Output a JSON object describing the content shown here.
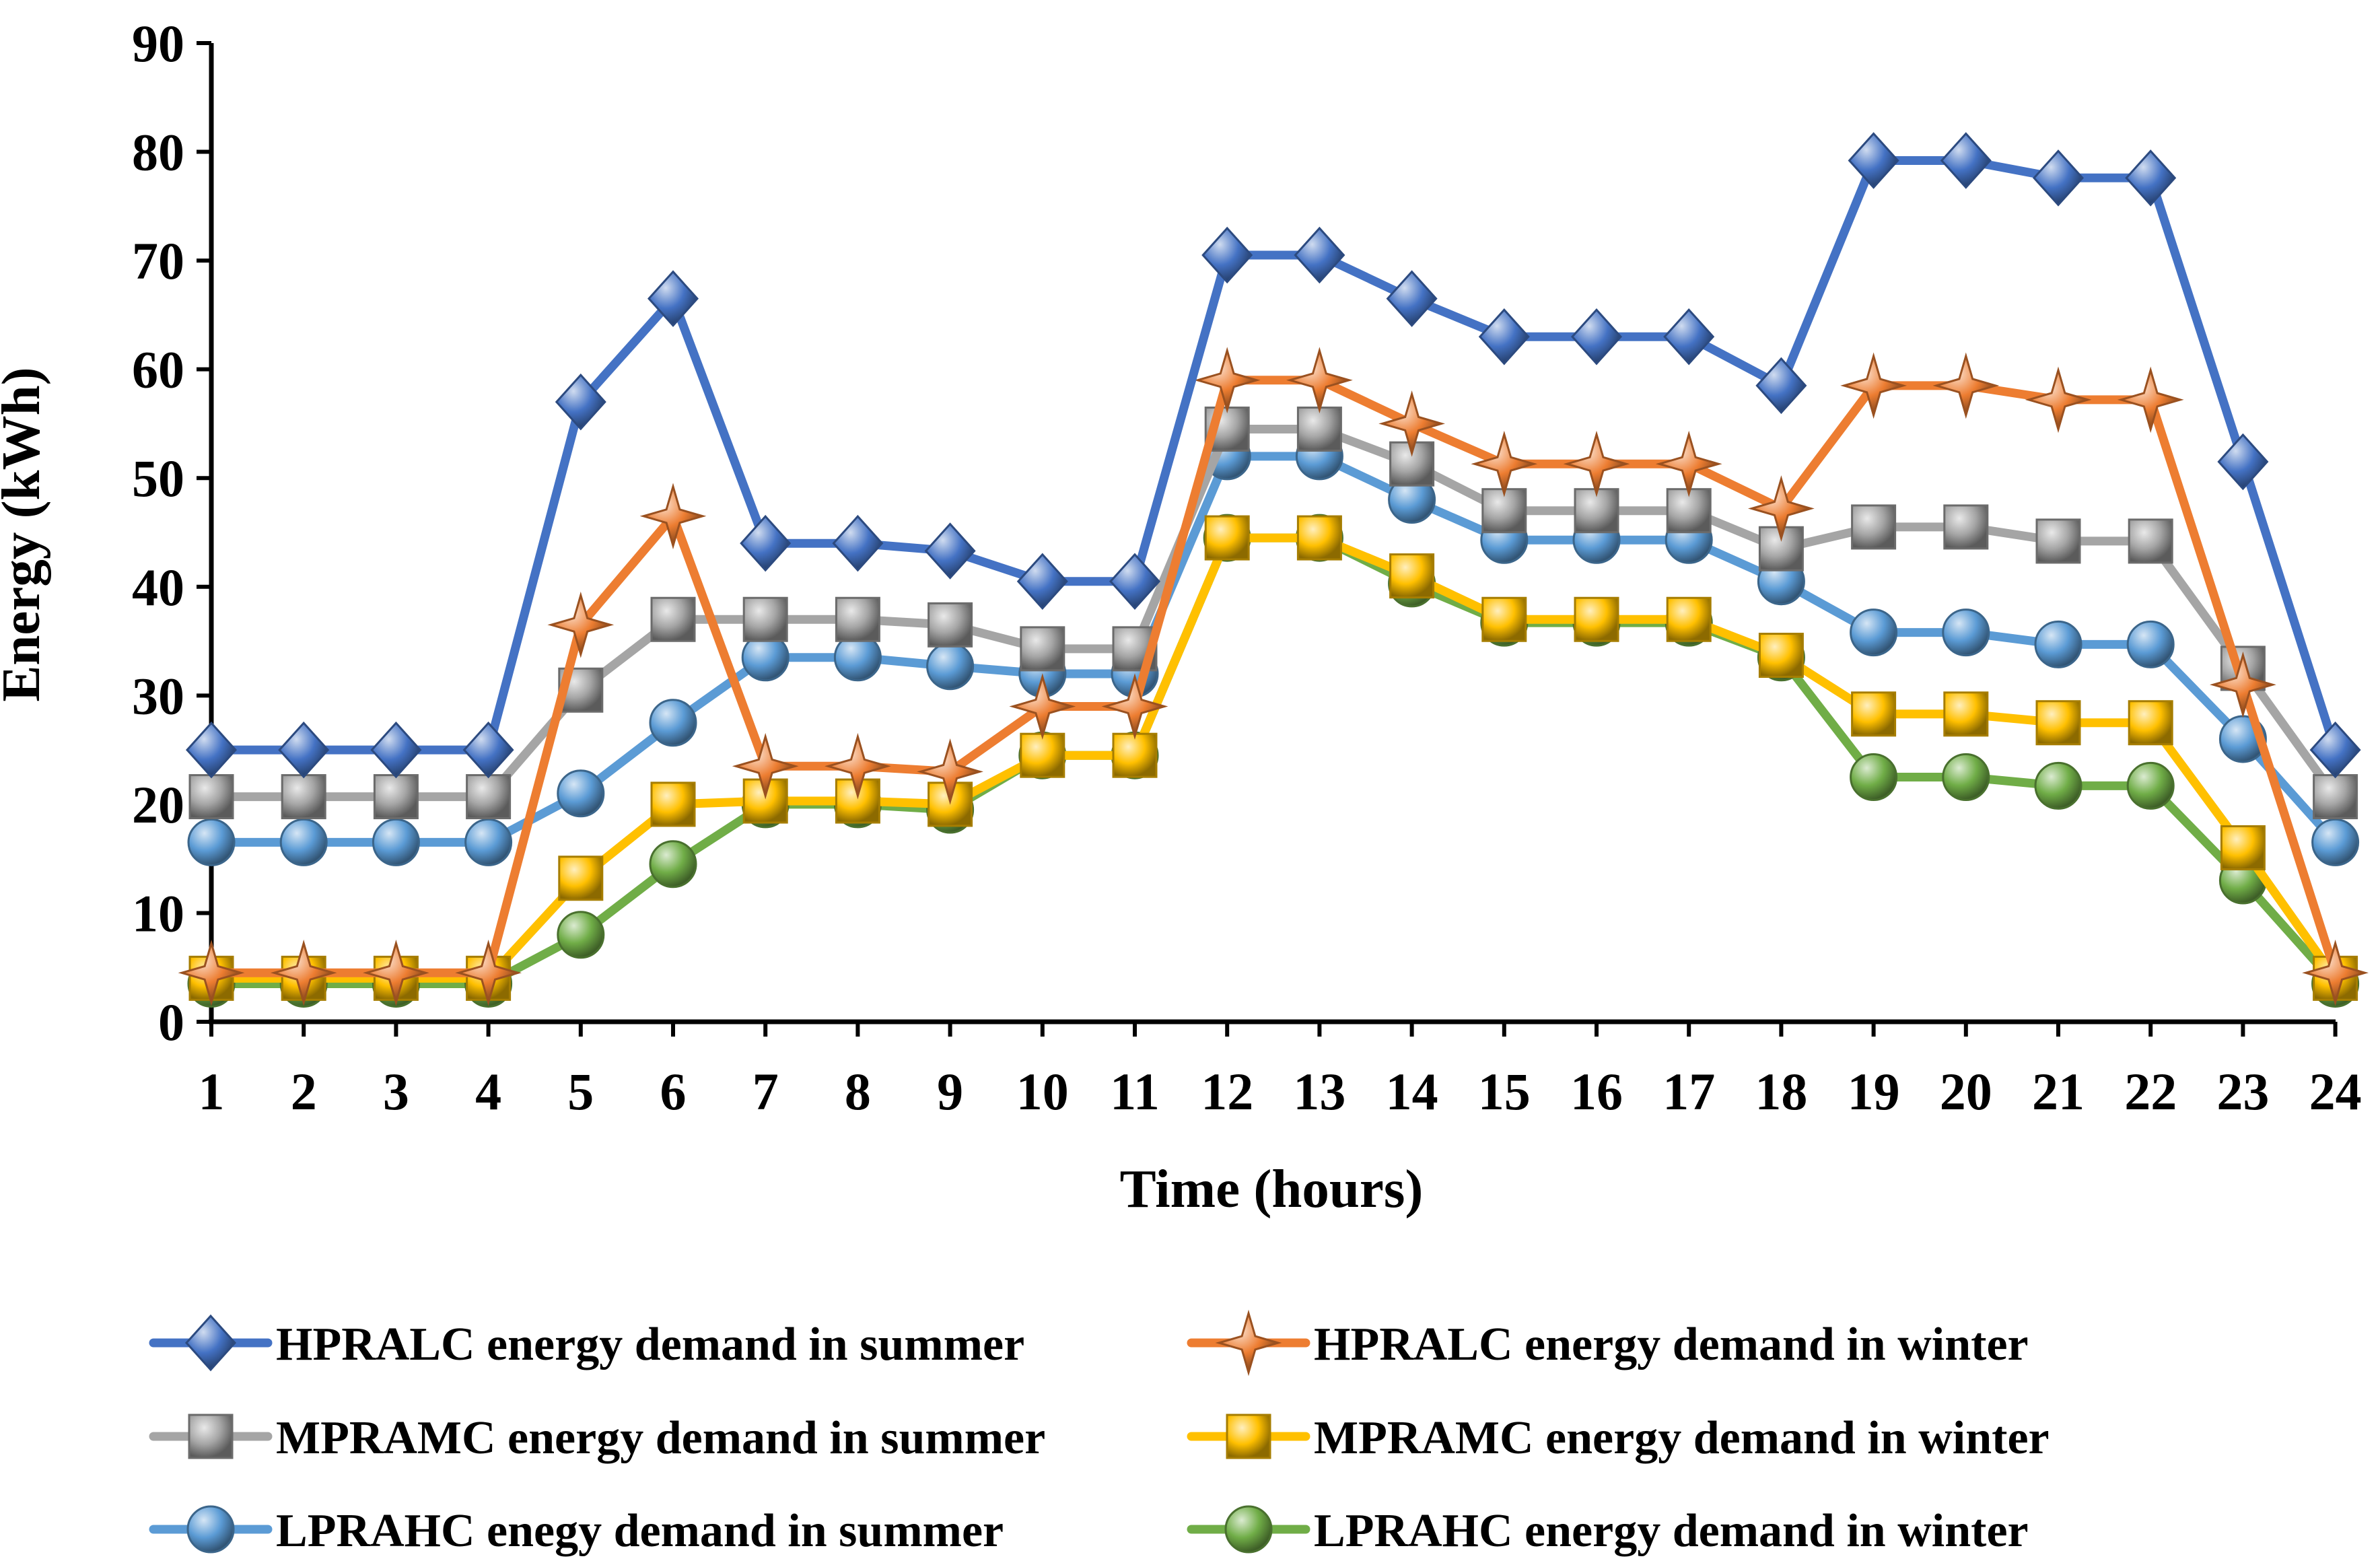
{
  "chart_data": {
    "type": "line",
    "title": "",
    "xlabel": "Time (hours)",
    "ylabel": "Energy (kWh)",
    "ylim": [
      0,
      90
    ],
    "yticks": [
      0,
      10,
      20,
      30,
      40,
      50,
      60,
      70,
      80,
      90
    ],
    "x": [
      1,
      2,
      3,
      4,
      5,
      6,
      7,
      8,
      9,
      10,
      11,
      12,
      13,
      14,
      15,
      16,
      17,
      18,
      19,
      20,
      21,
      22,
      23,
      24
    ],
    "grid": false,
    "legend_position": "bottom",
    "series": [
      {
        "name": "HPRALC energy demand in summer",
        "color": "#4472C4",
        "marker": "diamond",
        "values": [
          25,
          25,
          25,
          25,
          57,
          66.5,
          44,
          44,
          43.3,
          40.5,
          40.5,
          70.5,
          70.5,
          66.5,
          63,
          63,
          63,
          58.5,
          79.2,
          79.2,
          77.6,
          77.6,
          51.5,
          25
        ]
      },
      {
        "name": "HPRALC energy demand in winter",
        "color": "#ED7D31",
        "marker": "star",
        "values": [
          4.5,
          4.5,
          4.5,
          4.5,
          36.5,
          46.5,
          23.5,
          23.5,
          23,
          29,
          29,
          59,
          59,
          55,
          51.3,
          51.3,
          51.3,
          47.2,
          58.5,
          58.5,
          57.2,
          57.2,
          31,
          4.5
        ]
      },
      {
        "name": "MPRAMC energy demand in summer",
        "color": "#A5A5A5",
        "marker": "square",
        "values": [
          20.7,
          20.7,
          20.7,
          20.7,
          30.5,
          37,
          37,
          37,
          36.5,
          34.3,
          34.3,
          54.5,
          54.5,
          51.3,
          47,
          47,
          47,
          43.5,
          45.5,
          45.5,
          44.2,
          44.2,
          32.5,
          20.7
        ]
      },
      {
        "name": "MPRAMC energy demand in winter",
        "color": "#FFC000",
        "marker": "square",
        "values": [
          4,
          4,
          4,
          4,
          13.2,
          20,
          20.3,
          20.3,
          20,
          24.5,
          24.5,
          44.5,
          44.5,
          41,
          37,
          37,
          37,
          33.7,
          28.3,
          28.3,
          27.5,
          27.5,
          16,
          4
        ]
      },
      {
        "name": "LPRAHC enegy demand in summer",
        "color": "#5B9BD5",
        "marker": "circle",
        "values": [
          16.5,
          16.5,
          16.5,
          16.5,
          21,
          27.5,
          33.5,
          33.5,
          32.7,
          32,
          32,
          52,
          52,
          48,
          44.3,
          44.3,
          44.3,
          40.5,
          35.8,
          35.8,
          34.7,
          34.7,
          26,
          16.5
        ]
      },
      {
        "name": "LPRAHC energy demand in winter",
        "color": "#70AD47",
        "marker": "circle",
        "values": [
          3.5,
          3.5,
          3.5,
          3.5,
          8,
          14.5,
          20,
          20,
          19.5,
          24.5,
          24.5,
          44.5,
          44.5,
          40.3,
          36.7,
          36.7,
          36.7,
          33.5,
          22.5,
          22.5,
          21.7,
          21.7,
          13,
          3.5
        ]
      }
    ]
  }
}
